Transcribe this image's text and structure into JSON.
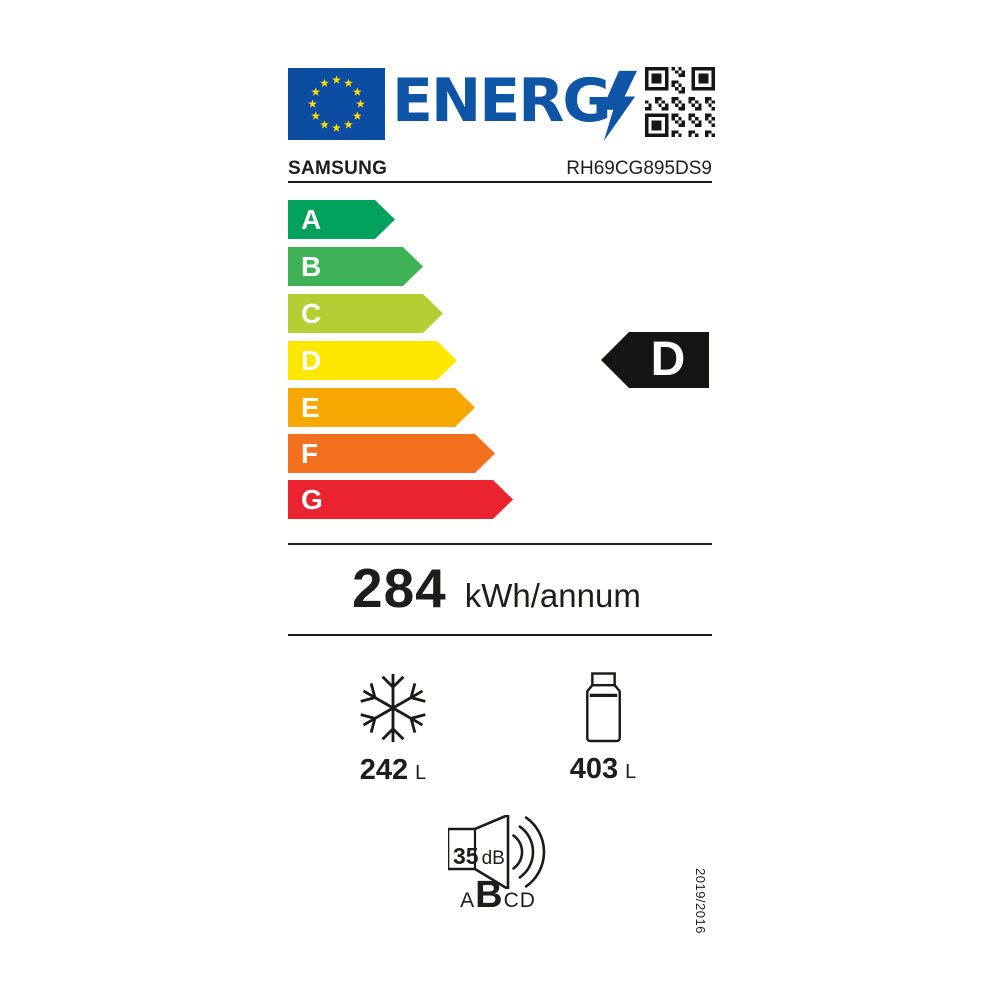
{
  "header": {
    "energy_word": "ENERG",
    "supplier": "SAMSUNG",
    "model": "RH69CG895DS9"
  },
  "energy_scale": {
    "classes": [
      {
        "label": "A",
        "color": "#00a15b"
      },
      {
        "label": "B",
        "color": "#3fb156"
      },
      {
        "label": "C",
        "color": "#b3cf33"
      },
      {
        "label": "D",
        "color": "#fee700"
      },
      {
        "label": "E",
        "color": "#f6a800"
      },
      {
        "label": "F",
        "color": "#f3701e"
      },
      {
        "label": "G",
        "color": "#e92430"
      }
    ]
  },
  "rating": {
    "class": "D",
    "arrow_color": "#151513"
  },
  "consumption": {
    "value": "284",
    "unit": "kWh/annum"
  },
  "compartments": {
    "freezer": {
      "value": "242",
      "unit": "L"
    },
    "fridge": {
      "value": "403",
      "unit": "L"
    }
  },
  "noise": {
    "value": "35",
    "unit": "dB",
    "scale": [
      "A",
      "B",
      "C",
      "D"
    ],
    "active_class": "B"
  },
  "regulation": "2019/2016",
  "colors": {
    "eu_blue": "#0c4da2",
    "logo_blue": "#0f55a6",
    "star_yellow": "#ffdd00",
    "ink": "#1d1d1b"
  }
}
